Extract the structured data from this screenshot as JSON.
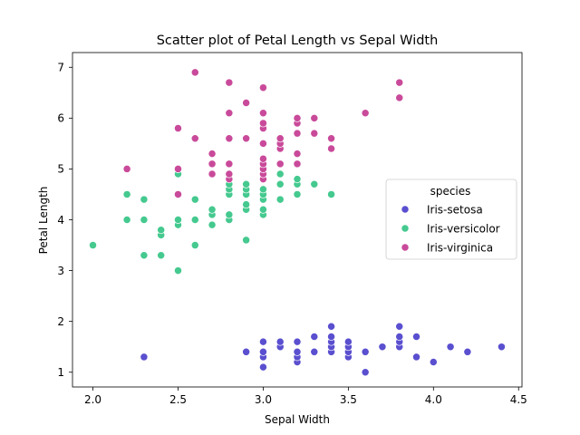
{
  "chart_data": {
    "type": "scatter",
    "title": "Scatter plot of Petal Length vs Sepal Width",
    "xlabel": "Sepal Width",
    "ylabel": "Petal Length",
    "xlim": [
      1.88,
      4.52
    ],
    "ylim": [
      0.71,
      7.29
    ],
    "xticks": [
      "2.0",
      "2.5",
      "3.0",
      "3.5",
      "4.0",
      "4.5"
    ],
    "yticks": [
      "1",
      "2",
      "3",
      "4",
      "5",
      "6",
      "7"
    ],
    "grid": false,
    "legend": {
      "title": "species",
      "placement": "center-right"
    },
    "series": [
      {
        "name": "Iris-setosa",
        "color": "#5a4fcf",
        "points": [
          [
            2.3,
            1.3
          ],
          [
            2.9,
            1.4
          ],
          [
            3.0,
            1.1
          ],
          [
            3.0,
            1.3
          ],
          [
            3.0,
            1.4
          ],
          [
            3.0,
            1.6
          ],
          [
            3.1,
            1.5
          ],
          [
            3.1,
            1.6
          ],
          [
            3.2,
            1.2
          ],
          [
            3.2,
            1.3
          ],
          [
            3.2,
            1.4
          ],
          [
            3.2,
            1.6
          ],
          [
            3.3,
            1.4
          ],
          [
            3.3,
            1.7
          ],
          [
            3.4,
            1.4
          ],
          [
            3.4,
            1.5
          ],
          [
            3.4,
            1.6
          ],
          [
            3.4,
            1.7
          ],
          [
            3.4,
            1.9
          ],
          [
            3.5,
            1.3
          ],
          [
            3.5,
            1.4
          ],
          [
            3.5,
            1.5
          ],
          [
            3.5,
            1.6
          ],
          [
            3.6,
            1.0
          ],
          [
            3.6,
            1.4
          ],
          [
            3.7,
            1.5
          ],
          [
            3.8,
            1.5
          ],
          [
            3.8,
            1.6
          ],
          [
            3.8,
            1.7
          ],
          [
            3.8,
            1.9
          ],
          [
            3.9,
            1.3
          ],
          [
            3.9,
            1.7
          ],
          [
            4.0,
            1.2
          ],
          [
            4.1,
            1.5
          ],
          [
            4.2,
            1.4
          ],
          [
            4.4,
            1.5
          ]
        ]
      },
      {
        "name": "Iris-versicolor",
        "color": "#45c98f",
        "points": [
          [
            2.0,
            3.5
          ],
          [
            2.2,
            4.0
          ],
          [
            2.2,
            4.5
          ],
          [
            2.3,
            3.3
          ],
          [
            2.3,
            4.0
          ],
          [
            2.3,
            4.4
          ],
          [
            2.4,
            3.3
          ],
          [
            2.4,
            3.7
          ],
          [
            2.4,
            3.8
          ],
          [
            2.5,
            3.0
          ],
          [
            2.5,
            3.9
          ],
          [
            2.5,
            4.0
          ],
          [
            2.5,
            4.9
          ],
          [
            2.6,
            3.5
          ],
          [
            2.6,
            4.0
          ],
          [
            2.6,
            4.4
          ],
          [
            2.7,
            3.9
          ],
          [
            2.7,
            4.1
          ],
          [
            2.7,
            4.2
          ],
          [
            2.8,
            4.0
          ],
          [
            2.8,
            4.1
          ],
          [
            2.8,
            4.5
          ],
          [
            2.8,
            4.6
          ],
          [
            2.8,
            4.7
          ],
          [
            2.9,
            3.6
          ],
          [
            2.9,
            4.2
          ],
          [
            2.9,
            4.3
          ],
          [
            2.9,
            4.5
          ],
          [
            2.9,
            4.6
          ],
          [
            2.9,
            4.7
          ],
          [
            3.0,
            4.1
          ],
          [
            3.0,
            4.2
          ],
          [
            3.0,
            4.4
          ],
          [
            3.0,
            4.5
          ],
          [
            3.0,
            4.6
          ],
          [
            3.0,
            5.0
          ],
          [
            3.1,
            4.4
          ],
          [
            3.1,
            4.7
          ],
          [
            3.1,
            4.9
          ],
          [
            3.2,
            4.5
          ],
          [
            3.2,
            4.7
          ],
          [
            3.2,
            4.8
          ],
          [
            3.3,
            4.7
          ],
          [
            3.4,
            4.5
          ]
        ]
      },
      {
        "name": "Iris-virginica",
        "color": "#c94a9a",
        "points": [
          [
            2.2,
            5.0
          ],
          [
            2.5,
            4.5
          ],
          [
            2.5,
            5.0
          ],
          [
            2.5,
            5.8
          ],
          [
            2.6,
            5.6
          ],
          [
            2.6,
            6.9
          ],
          [
            2.7,
            4.9
          ],
          [
            2.7,
            5.1
          ],
          [
            2.7,
            5.3
          ],
          [
            2.8,
            4.8
          ],
          [
            2.8,
            4.9
          ],
          [
            2.8,
            5.1
          ],
          [
            2.8,
            5.6
          ],
          [
            2.8,
            6.1
          ],
          [
            2.8,
            6.7
          ],
          [
            2.9,
            5.6
          ],
          [
            2.9,
            6.3
          ],
          [
            3.0,
            4.8
          ],
          [
            3.0,
            4.9
          ],
          [
            3.0,
            5.0
          ],
          [
            3.0,
            5.1
          ],
          [
            3.0,
            5.2
          ],
          [
            3.0,
            5.5
          ],
          [
            3.0,
            5.8
          ],
          [
            3.0,
            5.9
          ],
          [
            3.0,
            6.1
          ],
          [
            3.0,
            6.6
          ],
          [
            3.1,
            5.1
          ],
          [
            3.1,
            5.4
          ],
          [
            3.1,
            5.5
          ],
          [
            3.1,
            5.6
          ],
          [
            3.2,
            5.1
          ],
          [
            3.2,
            5.3
          ],
          [
            3.2,
            5.7
          ],
          [
            3.2,
            5.9
          ],
          [
            3.2,
            6.0
          ],
          [
            3.3,
            5.7
          ],
          [
            3.3,
            6.0
          ],
          [
            3.4,
            5.4
          ],
          [
            3.4,
            5.6
          ],
          [
            3.6,
            6.1
          ],
          [
            3.8,
            6.4
          ],
          [
            3.8,
            6.7
          ]
        ]
      }
    ]
  }
}
